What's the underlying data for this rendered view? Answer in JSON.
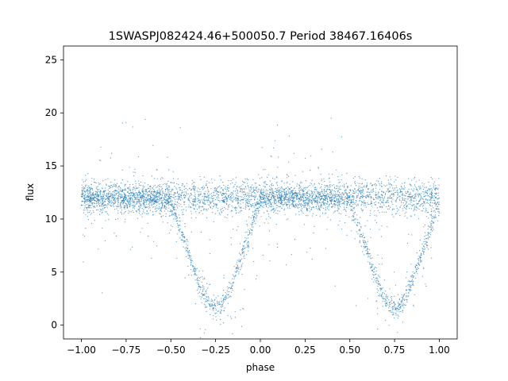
{
  "chart_data": {
    "type": "scatter",
    "title": "1SWASPJ082424.46+500050.7 Period 38467.16406s",
    "xlabel": "phase",
    "ylabel": "flux",
    "xlim": [
      -1.1,
      1.1
    ],
    "ylim": [
      -1.3,
      26.3
    ],
    "x_ticks": [
      -1.0,
      -0.75,
      -0.5,
      -0.25,
      0.0,
      0.25,
      0.5,
      0.75,
      1.0
    ],
    "x_tick_labels": [
      "−1.00",
      "−0.75",
      "−0.50",
      "−0.25",
      "0.00",
      "0.25",
      "0.50",
      "0.75",
      "1.00"
    ],
    "y_ticks": [
      0,
      5,
      10,
      15,
      20,
      25
    ],
    "y_tick_labels": [
      "0",
      "5",
      "10",
      "15",
      "20",
      "25"
    ],
    "grid": false,
    "legend": "none",
    "marker_color": "#1f77b4",
    "series": [
      {
        "x": [
          -1.0,
          -0.9,
          -0.8,
          -0.7,
          -0.6,
          -0.5,
          -0.45,
          -0.4,
          -0.35,
          -0.3,
          -0.25,
          -0.2,
          -0.15,
          -0.1,
          -0.05,
          0.0,
          0.1,
          0.2,
          0.3,
          0.4,
          0.5,
          0.55,
          0.6,
          0.65,
          0.7,
          0.75,
          0.8,
          0.85,
          0.9,
          0.95,
          1.0
        ],
        "y": [
          12.0,
          12.0,
          12.0,
          12.0,
          12.0,
          11.5,
          9.2,
          6.8,
          4.3,
          2.2,
          1.5,
          2.2,
          4.3,
          6.8,
          9.2,
          11.8,
          12.0,
          12.0,
          12.0,
          12.0,
          11.5,
          9.2,
          6.8,
          4.3,
          2.2,
          1.5,
          2.2,
          4.3,
          6.8,
          9.2,
          11.8
        ]
      }
    ]
  }
}
